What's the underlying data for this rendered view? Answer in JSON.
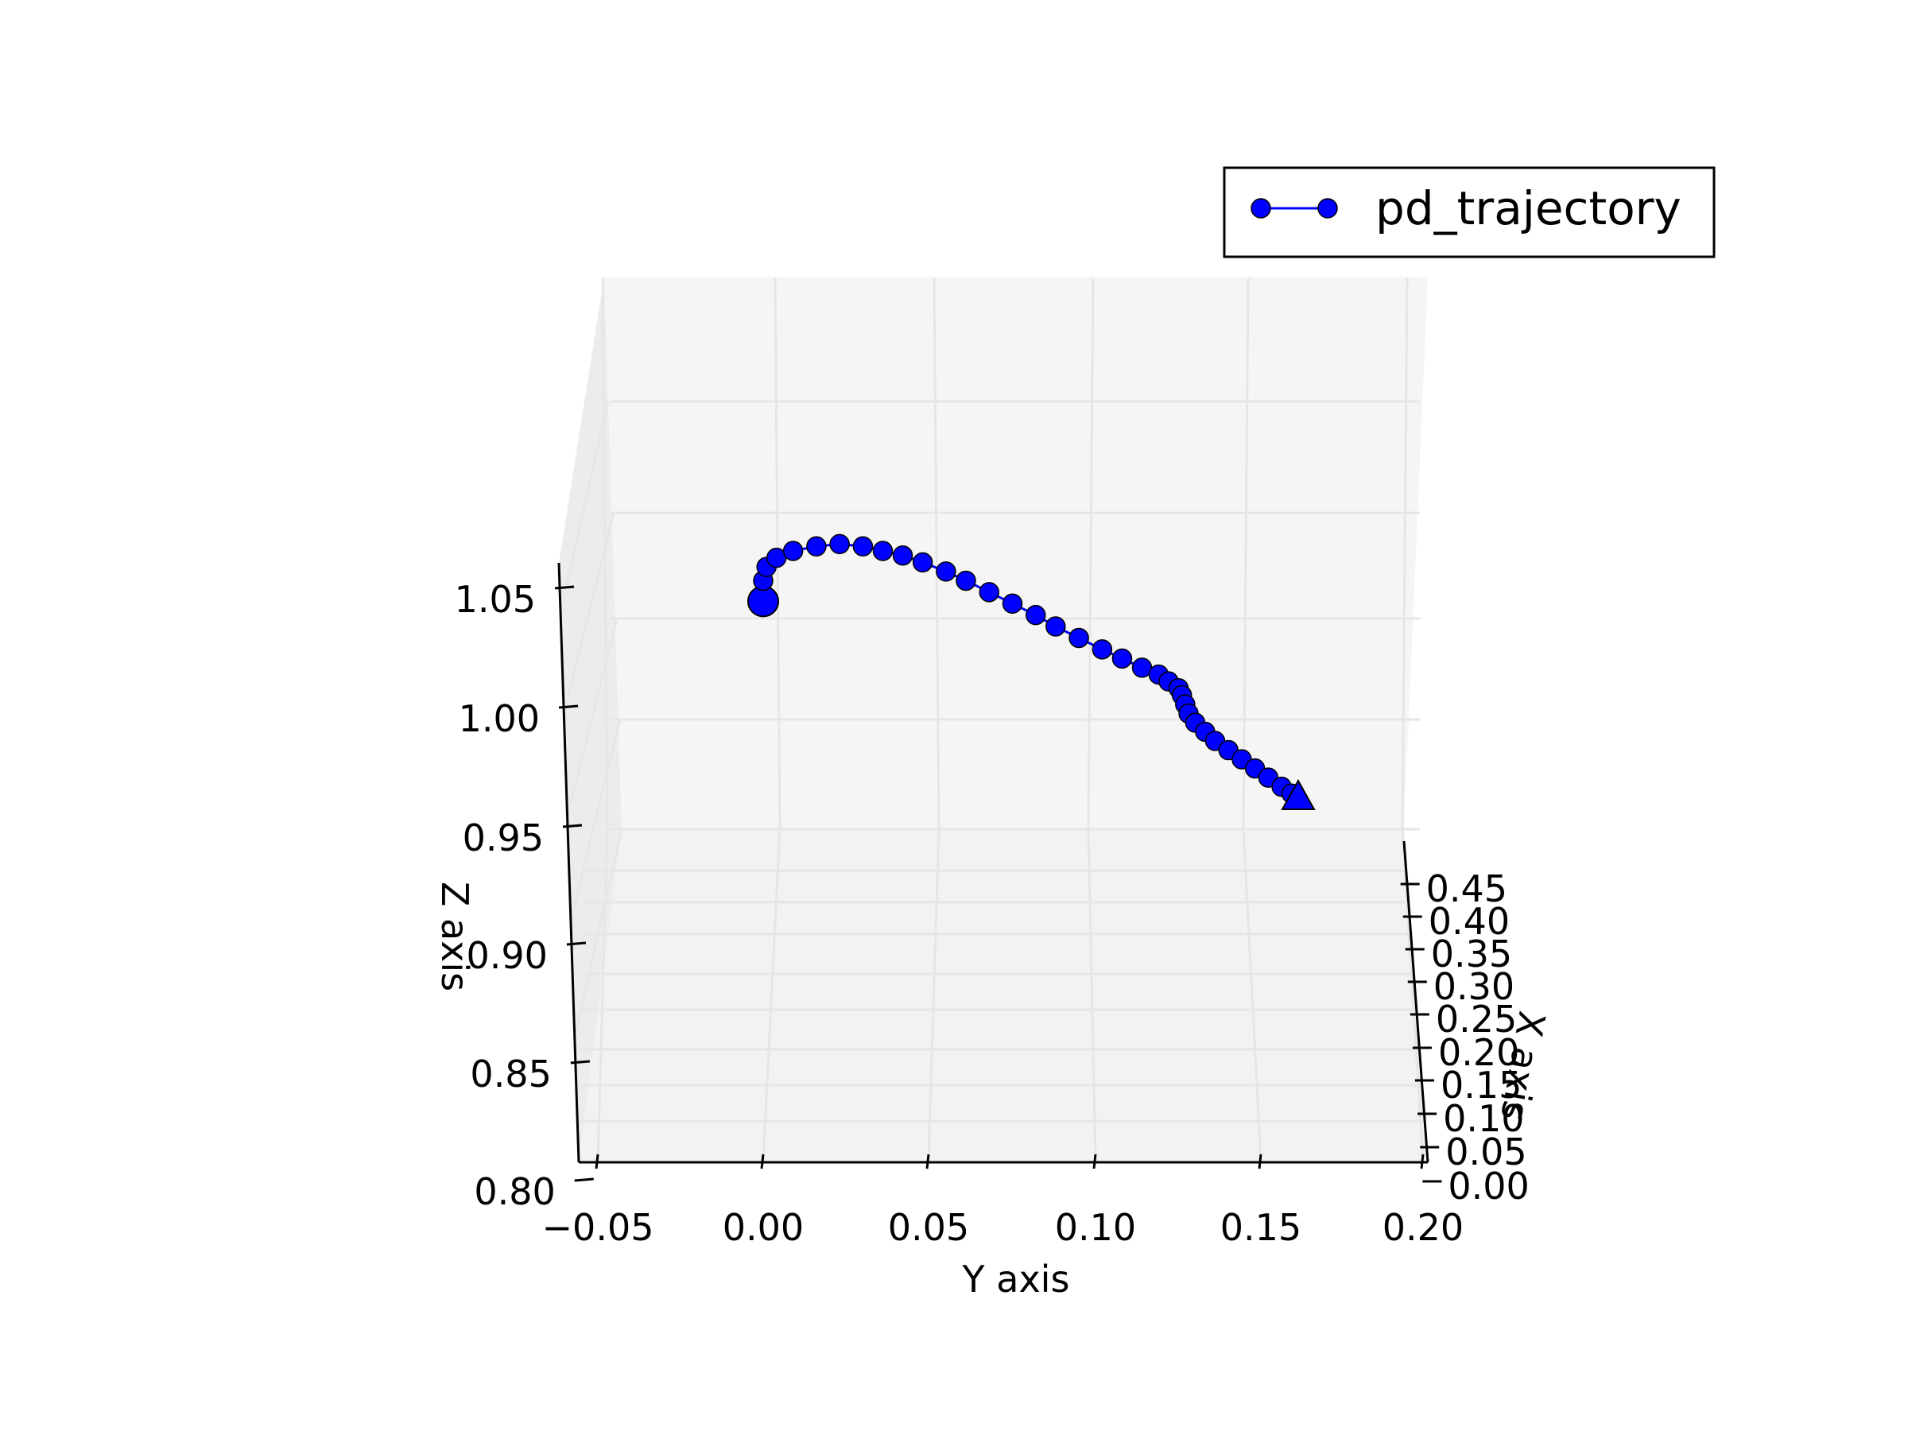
{
  "chart_data": {
    "type": "line",
    "projection": "3d",
    "series": [
      {
        "name": "pd_trajectory",
        "color": "#0000ff",
        "marker": "circle",
        "start_marker": "large-circle",
        "end_marker": "triangle",
        "points": [
          {
            "y": 0.0,
            "z": 1.053
          },
          {
            "y": 0.0,
            "z": 1.062
          },
          {
            "y": 0.001,
            "z": 1.068
          },
          {
            "y": 0.004,
            "z": 1.072
          },
          {
            "y": 0.009,
            "z": 1.075
          },
          {
            "y": 0.016,
            "z": 1.077
          },
          {
            "y": 0.023,
            "z": 1.078
          },
          {
            "y": 0.03,
            "z": 1.077
          },
          {
            "y": 0.036,
            "z": 1.075
          },
          {
            "y": 0.042,
            "z": 1.073
          },
          {
            "y": 0.048,
            "z": 1.07
          },
          {
            "y": 0.055,
            "z": 1.066
          },
          {
            "y": 0.061,
            "z": 1.062
          },
          {
            "y": 0.068,
            "z": 1.057
          },
          {
            "y": 0.075,
            "z": 1.052
          },
          {
            "y": 0.082,
            "z": 1.047
          },
          {
            "y": 0.088,
            "z": 1.042
          },
          {
            "y": 0.095,
            "z": 1.037
          },
          {
            "y": 0.102,
            "z": 1.032
          },
          {
            "y": 0.108,
            "z": 1.028
          },
          {
            "y": 0.114,
            "z": 1.024
          },
          {
            "y": 0.119,
            "z": 1.021
          },
          {
            "y": 0.122,
            "z": 1.018
          },
          {
            "y": 0.125,
            "z": 1.015
          },
          {
            "y": 0.126,
            "z": 1.012
          },
          {
            "y": 0.127,
            "z": 1.008
          },
          {
            "y": 0.128,
            "z": 1.004
          },
          {
            "y": 0.13,
            "z": 1.0
          },
          {
            "y": 0.133,
            "z": 0.996
          },
          {
            "y": 0.136,
            "z": 0.992
          },
          {
            "y": 0.14,
            "z": 0.988
          },
          {
            "y": 0.144,
            "z": 0.984
          },
          {
            "y": 0.148,
            "z": 0.98
          },
          {
            "y": 0.152,
            "z": 0.976
          },
          {
            "y": 0.156,
            "z": 0.972
          },
          {
            "y": 0.159,
            "z": 0.969
          },
          {
            "y": 0.161,
            "z": 0.967
          }
        ]
      }
    ],
    "legend": {
      "entries": [
        "pd_trajectory"
      ],
      "placement": "top-right"
    },
    "axes": {
      "y": {
        "label": "Y axis",
        "ticks": [
          "−0.05",
          "0.00",
          "0.05",
          "0.10",
          "0.15",
          "0.20"
        ],
        "range": [
          -0.05,
          0.2
        ]
      },
      "z": {
        "label": "Z axis",
        "ticks": [
          "0.80",
          "0.85",
          "0.90",
          "0.95",
          "1.00",
          "1.05"
        ],
        "range": [
          0.8,
          1.075
        ]
      },
      "x": {
        "label": "X axis",
        "ticks": [
          "0.00",
          "0.05",
          "0.10",
          "0.15",
          "0.20",
          "0.25",
          "0.30",
          "0.35",
          "0.40",
          "0.45"
        ],
        "range": [
          0,
          0.5
        ]
      }
    },
    "grid": true,
    "pane_color": "#f5f5f5",
    "grid_color": "#e6e6e6"
  }
}
